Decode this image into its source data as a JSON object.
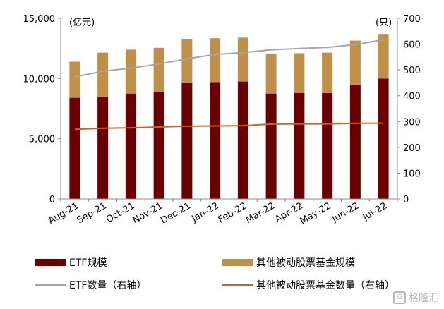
{
  "chart_data": {
    "type": "bar",
    "stacked": true,
    "categories": [
      "Aug-21",
      "Sep-21",
      "Oct-21",
      "Nov-21",
      "Dec-21",
      "Jan-22",
      "Feb-22",
      "Mar-22",
      "Apr-22",
      "May-22",
      "Jun-22",
      "Jul-22"
    ],
    "left_unit": "(亿元)",
    "right_unit": "(只)",
    "left_axis": {
      "ylim": [
        0,
        15000
      ],
      "ticks": [
        "0",
        "5,000",
        "10,000",
        "15,000"
      ],
      "tick_values": [
        0,
        5000,
        10000,
        15000
      ]
    },
    "right_axis": {
      "ylim": [
        0,
        700
      ],
      "ticks": [
        "0",
        "100",
        "200",
        "300",
        "400",
        "500",
        "600",
        "700"
      ],
      "tick_values": [
        0,
        100,
        200,
        300,
        400,
        500,
        600,
        700
      ]
    },
    "series": [
      {
        "name": "ETF规模",
        "kind": "bar",
        "axis": "left",
        "color": "#6b0000",
        "values": [
          8400,
          8500,
          8750,
          8900,
          9650,
          9700,
          9750,
          8750,
          8800,
          8800,
          9500,
          10000
        ]
      },
      {
        "name": "其他被动股票基金规模",
        "kind": "bar",
        "axis": "left",
        "color": "#c0904a",
        "values": [
          3000,
          3650,
          3650,
          3650,
          3650,
          3650,
          3650,
          3300,
          3300,
          3350,
          3650,
          3700
        ]
      },
      {
        "name": "ETF数量（右轴）",
        "kind": "line",
        "axis": "right",
        "color": "#a6a6a6",
        "values": [
          473,
          495,
          507,
          523,
          543,
          560,
          567,
          578,
          583,
          587,
          598,
          617
        ]
      },
      {
        "name": "其他被动股票基金数量（右轴）",
        "kind": "line",
        "axis": "right",
        "color": "#d0611c",
        "values": [
          270,
          274,
          276,
          279,
          282,
          283,
          284,
          290,
          291,
          291,
          293,
          294
        ]
      }
    ],
    "legend_position": "bottom",
    "grid": false
  },
  "watermark": {
    "icon": "G",
    "text": "格隆汇"
  }
}
